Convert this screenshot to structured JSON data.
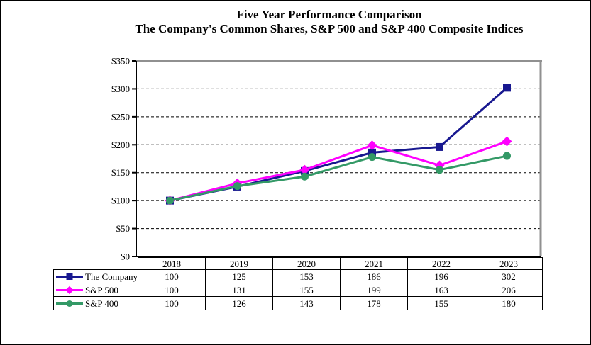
{
  "title": {
    "line1": "Five Year Performance Comparison",
    "line2": "The Company's Common Shares, S&P 500 and S&P 400 Composite Indices"
  },
  "chart_data": {
    "type": "line",
    "title": "Five Year Performance Comparison — The Company's Common Shares, S&P 500 and S&P 400 Composite Indices",
    "xlabel": "",
    "ylabel": "",
    "categories": [
      "2018",
      "2019",
      "2020",
      "2021",
      "2022",
      "2023"
    ],
    "series": [
      {
        "name": "The Company",
        "color": "#181890",
        "marker": "square",
        "values": [
          100,
          125,
          153,
          186,
          196,
          302
        ]
      },
      {
        "name": "S&P 500",
        "color": "#ff00ff",
        "marker": "diamond",
        "values": [
          100,
          131,
          155,
          199,
          163,
          206
        ]
      },
      {
        "name": "S&P 400",
        "color": "#339966",
        "marker": "circle",
        "values": [
          100,
          126,
          143,
          178,
          155,
          180
        ]
      }
    ],
    "ylim": [
      0,
      350
    ],
    "ytick_step": 50,
    "y_tick_labels": [
      "$0",
      "$50",
      "$100",
      "$150",
      "$200",
      "$250",
      "$300",
      "$350"
    ],
    "grid": "dashed-horizontal",
    "legend_position": "table-left"
  },
  "colors": {
    "plot_border_gray": "#909090",
    "axis_black": "#000000",
    "grid_black": "#000000",
    "table_border": "#000000",
    "background": "#ffffff"
  }
}
